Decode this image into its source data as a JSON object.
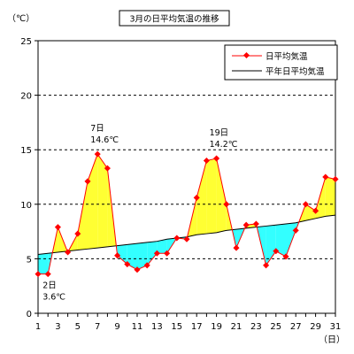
{
  "chart_data": {
    "type": "line",
    "title": "3月の日平均気温の推移",
    "y_unit_label": "（℃）",
    "x_unit_label": "（日）",
    "ylim": [
      0,
      25
    ],
    "y_ticks": [
      0,
      5,
      10,
      15,
      20,
      25
    ],
    "y_grid_dashed": [
      5,
      10,
      15,
      20
    ],
    "xlim": [
      1,
      31
    ],
    "x_ticks": [
      1,
      3,
      5,
      7,
      9,
      11,
      13,
      15,
      17,
      19,
      21,
      23,
      25,
      27,
      29,
      31
    ],
    "days": [
      1,
      2,
      3,
      4,
      5,
      6,
      7,
      8,
      9,
      10,
      11,
      12,
      13,
      14,
      15,
      16,
      17,
      18,
      19,
      20,
      21,
      22,
      23,
      24,
      25,
      26,
      27,
      28,
      29,
      30,
      31
    ],
    "series": [
      {
        "name": "日平均気温",
        "color": "#ff0000",
        "values": [
          3.6,
          3.6,
          7.9,
          5.6,
          7.3,
          12.1,
          14.6,
          13.3,
          5.3,
          4.5,
          4.0,
          4.4,
          5.5,
          5.5,
          6.9,
          6.8,
          10.6,
          14.0,
          14.2,
          10.0,
          6.0,
          8.1,
          8.2,
          4.4,
          5.7,
          5.2,
          7.6,
          10.0,
          9.4,
          12.5,
          12.3
        ]
      },
      {
        "name": "平年日平均気温",
        "color": "#000000",
        "values": [
          5.4,
          5.5,
          5.6,
          5.7,
          5.8,
          5.9,
          6.0,
          6.1,
          6.2,
          6.3,
          6.4,
          6.5,
          6.6,
          6.8,
          6.9,
          7.0,
          7.2,
          7.3,
          7.4,
          7.6,
          7.7,
          7.8,
          7.9,
          8.0,
          8.1,
          8.2,
          8.3,
          8.5,
          8.7,
          8.9,
          9.0
        ]
      }
    ],
    "fill_above_color": "#ffff33",
    "fill_below_color": "#33ffff",
    "annotations": [
      {
        "day": 7,
        "value": 14.6,
        "lines": [
          "7日",
          "14.6℃"
        ]
      },
      {
        "day": 19,
        "value": 14.2,
        "lines": [
          "19日",
          "14.2℃"
        ]
      },
      {
        "day": 2,
        "value": 3.6,
        "lines": [
          "2日",
          "3.6℃"
        ]
      }
    ],
    "legend_position": "top-right"
  }
}
